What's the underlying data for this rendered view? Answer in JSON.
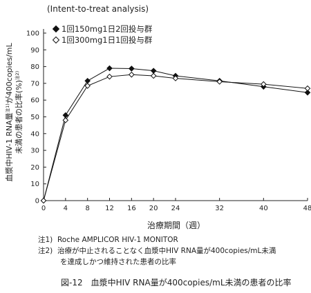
{
  "chart_data": {
    "type": "line",
    "subtitle": "(Intent-to-treat analysis)",
    "xlabel": "治療期間（週）",
    "ylabel_main": "血漿中HIV-1 RNA量",
    "ylabel_sup1": "注1)",
    "ylabel_mid": "が400copies/mL",
    "ylabel_line2": "未満の患者の比率(%)",
    "ylabel_sup2": "注2)",
    "x_ticks": [
      0,
      4,
      8,
      12,
      16,
      20,
      24,
      32,
      40,
      48
    ],
    "y_ticks": [
      0,
      10,
      20,
      30,
      40,
      50,
      60,
      70,
      80,
      90,
      100
    ],
    "xlim": [
      0,
      48
    ],
    "ylim": [
      0,
      100
    ],
    "grid": false,
    "legend_position": "top-left",
    "series": [
      {
        "name": "1回150mg1日2回投与群",
        "marker": "filled-diamond",
        "color": "#111111",
        "x": [
          0,
          4,
          8,
          12,
          16,
          20,
          24,
          32,
          40,
          48
        ],
        "values": [
          0,
          51,
          71.5,
          79,
          78.8,
          77.5,
          74.5,
          71.5,
          68,
          64.5
        ]
      },
      {
        "name": "1回300mg1日1回投与群",
        "marker": "open-diamond",
        "color": "#111111",
        "x": [
          0,
          4,
          8,
          12,
          16,
          20,
          24,
          32,
          40,
          48
        ],
        "values": [
          0,
          48,
          68.5,
          74,
          75.2,
          74.5,
          73,
          71,
          69.5,
          67
        ]
      }
    ]
  },
  "footnotes": {
    "n1_label": "注1)",
    "n1_text": "Roche AMPLICOR HIV-1 MONITOR",
    "n2_label": "注2)",
    "n2_line1": "治療が中止されることなく血漿中HIV RNA量が400copies/mL未満",
    "n2_line2": "を達成しかつ維持された患者の比率"
  },
  "caption": "図-12　血漿中HIV RNA量が400copies/mL未満の患者の比率"
}
